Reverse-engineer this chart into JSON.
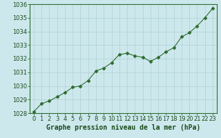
{
  "x": [
    0,
    1,
    2,
    3,
    4,
    5,
    6,
    7,
    8,
    9,
    10,
    11,
    12,
    13,
    14,
    15,
    16,
    17,
    18,
    19,
    20,
    21,
    22,
    23
  ],
  "y": [
    1028.1,
    1028.7,
    1028.9,
    1029.2,
    1029.5,
    1029.9,
    1030.0,
    1030.4,
    1031.1,
    1031.3,
    1031.7,
    1032.3,
    1032.4,
    1032.2,
    1032.1,
    1031.8,
    1032.1,
    1032.5,
    1032.8,
    1033.6,
    1033.9,
    1034.4,
    1035.0,
    1035.7
  ],
  "line_color": "#2d6a2d",
  "marker": "D",
  "marker_size": 2.5,
  "bg_color": "#cce8ec",
  "grid_color": "#b0d0d4",
  "xlabel": "Graphe pression niveau de la mer (hPa)",
  "xlabel_fontsize": 7,
  "xlabel_color": "#1a4a1a",
  "ylim": [
    1028,
    1036
  ],
  "yticks": [
    1028,
    1029,
    1030,
    1031,
    1032,
    1033,
    1034,
    1035,
    1036
  ],
  "xticks": [
    0,
    1,
    2,
    3,
    4,
    5,
    6,
    7,
    8,
    9,
    10,
    11,
    12,
    13,
    14,
    15,
    16,
    17,
    18,
    19,
    20,
    21,
    22,
    23
  ],
  "tick_fontsize": 6,
  "tick_color": "#1a4a1a",
  "spine_color": "#2d6a2d"
}
